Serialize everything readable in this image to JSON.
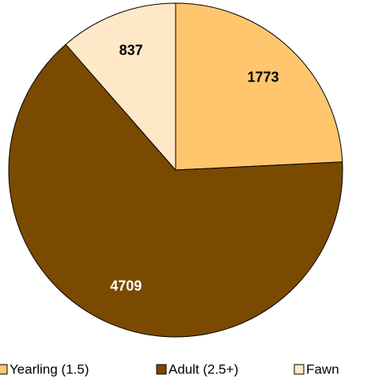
{
  "chart_data": {
    "type": "pie",
    "categories": [
      "Yearling (1.5)",
      "Adult (2.5+)",
      "Fawn"
    ],
    "values": [
      1773,
      4709,
      837
    ],
    "colors": [
      "#FFC66E",
      "#7A4A00",
      "#FFE8C8"
    ],
    "legend": "bottom"
  }
}
